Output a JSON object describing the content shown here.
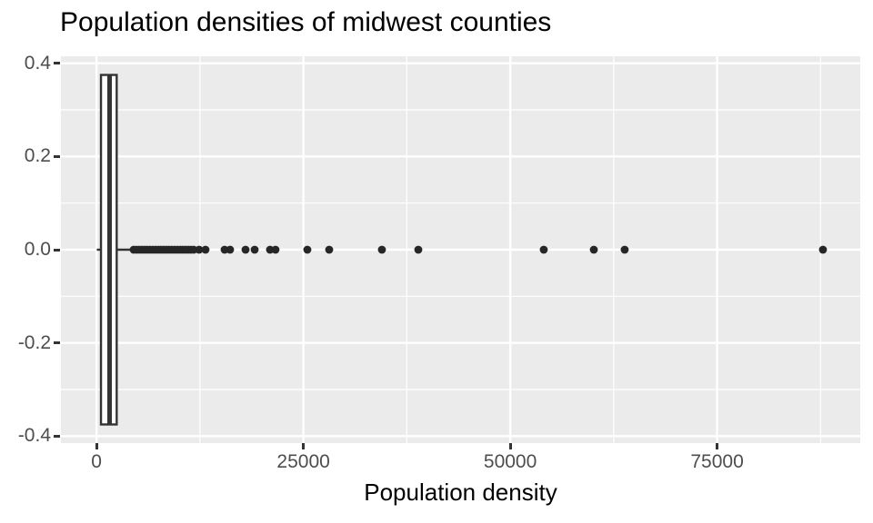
{
  "chart_data": {
    "type": "boxplot",
    "orientation": "horizontal",
    "title": "Population densities of midwest counties",
    "xlabel": "Population density",
    "ylabel": "",
    "grid": true,
    "legend": "none",
    "xlim": [
      -4300,
      92300
    ],
    "ylim": [
      -0.415,
      0.415
    ],
    "x_major_ticks": [
      {
        "value": 0,
        "label": "0"
      },
      {
        "value": 25000,
        "label": "25000"
      },
      {
        "value": 50000,
        "label": "50000"
      },
      {
        "value": 75000,
        "label": "75000"
      }
    ],
    "x_minor_ticks": [
      12500,
      37500,
      62500,
      87500
    ],
    "y_major_ticks": [
      {
        "value": 0.4,
        "label": "0.4"
      },
      {
        "value": 0.2,
        "label": "0.2"
      },
      {
        "value": 0.0,
        "label": "0.0"
      },
      {
        "value": -0.2,
        "label": "-0.2"
      },
      {
        "value": -0.4,
        "label": "-0.4"
      }
    ],
    "y_minor_ticks": [
      0.3,
      0.1,
      -0.1,
      -0.3
    ],
    "box": {
      "center_y": 0,
      "half_width": 0.375,
      "whisker_low": 40,
      "q1": 540,
      "median": 1580,
      "q3": 2440,
      "whisker_high": 4380
    },
    "outliers": [
      4490,
      4820,
      5150,
      5480,
      5810,
      6140,
      6470,
      6800,
      7130,
      7460,
      7790,
      8120,
      8450,
      8780,
      9110,
      9440,
      9770,
      10100,
      10430,
      10760,
      11090,
      11410,
      11740,
      12400,
      13170,
      15480,
      16140,
      18010,
      19110,
      20970,
      21630,
      25480,
      28120,
      34490,
      38890,
      54050,
      60100,
      63830,
      87790
    ],
    "point_radius_px": 4.4,
    "colors": {
      "panel_bg": "#ebebeb",
      "grid": "#ffffff",
      "stroke": "#333333",
      "box_fill": "#ffffff",
      "point": "#262626",
      "tick_mark": "#333333",
      "tick_label": "#4d4d4d",
      "title": "#000000"
    }
  }
}
